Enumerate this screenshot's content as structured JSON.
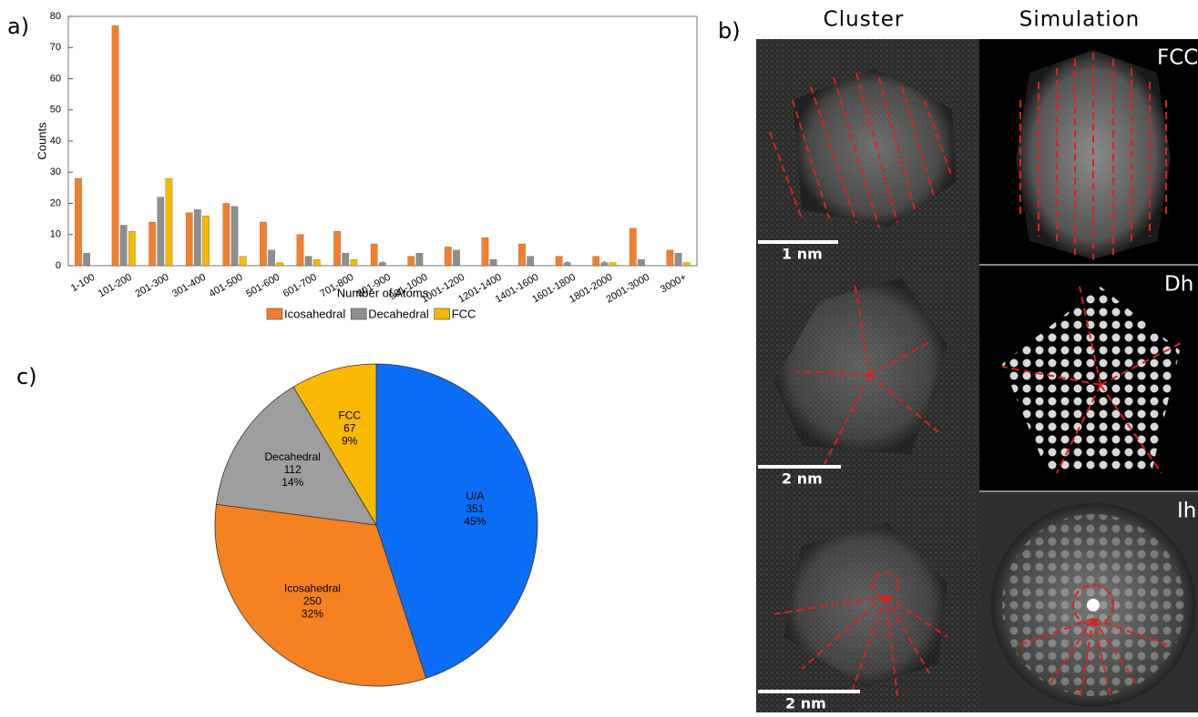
{
  "panel_labels": [
    "a)",
    "b)",
    "c)"
  ],
  "micrographs": {
    "columns": [
      "Cluster",
      "Simulation"
    ],
    "structures": [
      "FCC",
      "Dh",
      "Ih"
    ],
    "scale_bars": [
      "1 nm",
      "2 nm",
      "2 nm"
    ]
  },
  "chart_data": [
    {
      "type": "bar",
      "x_label": "Number of Atoms",
      "y_label": "Counts",
      "categories": [
        "1-100",
        "101-200",
        "201-300",
        "301-400",
        "401-500",
        "501-600",
        "601-700",
        "701-800",
        "801-900",
        "901-1000",
        "1001-1200",
        "1201-1400",
        "1401-1600",
        "1601-1800",
        "1801-2000",
        "2001-3000",
        "3000+"
      ],
      "series": [
        {
          "name": "Icosahedral",
          "color": "#f57f28",
          "values": [
            28,
            77,
            14,
            17,
            20,
            14,
            10,
            11,
            7,
            3,
            6,
            9,
            7,
            3,
            3,
            12,
            5
          ]
        },
        {
          "name": "Decahedral",
          "color": "#8e8e8e",
          "values": [
            4,
            13,
            22,
            18,
            19,
            5,
            3,
            4,
            1,
            4,
            5,
            2,
            3,
            1,
            1,
            2,
            4
          ]
        },
        {
          "name": "FCC",
          "color": "#f6b800",
          "values": [
            0,
            11,
            28,
            16,
            3,
            1,
            2,
            2,
            0,
            0,
            0,
            0,
            0,
            0,
            1,
            0,
            1
          ]
        }
      ],
      "ylim": [
        0,
        80
      ],
      "yticks": [
        0,
        10,
        20,
        30,
        40,
        50,
        60,
        70,
        80
      ],
      "legend": "bottom"
    },
    {
      "type": "pie",
      "categories": [
        "U/A",
        "Icosahedral",
        "Decahedral",
        "FCC"
      ],
      "values": [
        351,
        250,
        112,
        67
      ],
      "percent_labels": [
        "45%",
        "32%",
        "14%",
        "9%"
      ],
      "colors": [
        "#0a6ef7",
        "#f68120",
        "#9e9e9e",
        "#fbb800"
      ]
    }
  ]
}
